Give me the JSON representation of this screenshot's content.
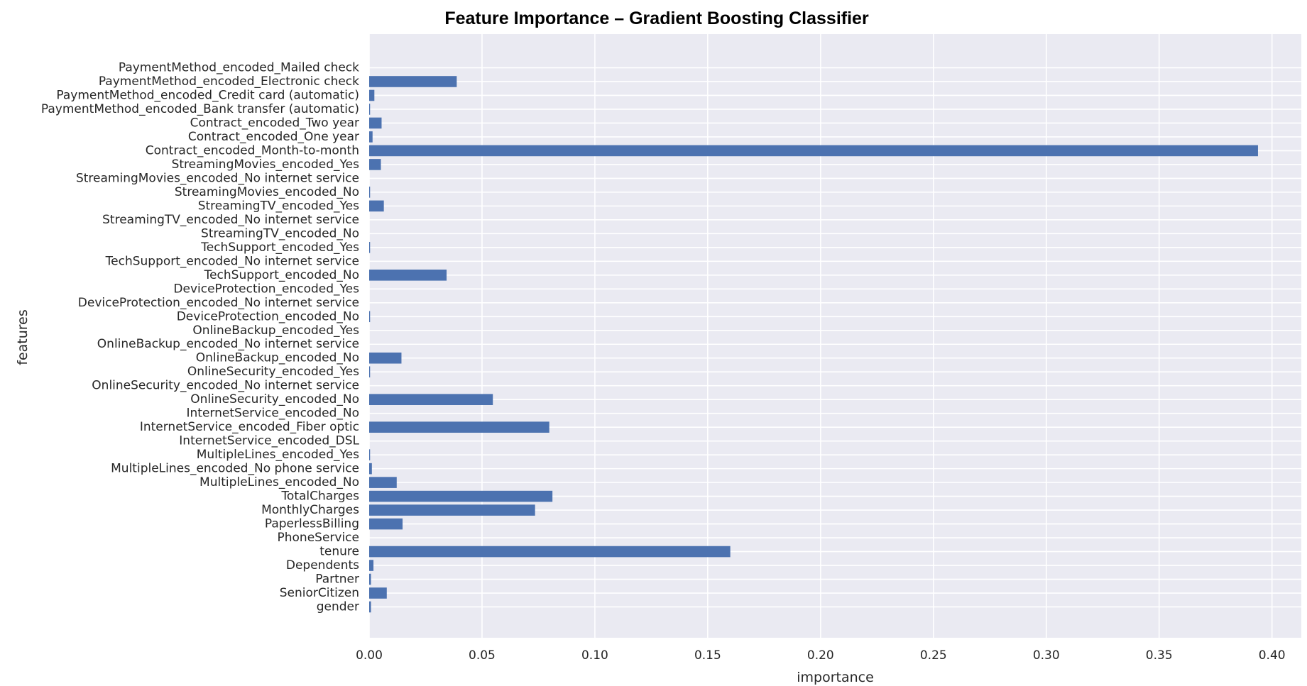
{
  "chart_data": {
    "type": "bar",
    "orientation": "horizontal",
    "title": "Feature Importance – Gradient Boosting Classifier",
    "xlabel": "importance",
    "ylabel": "features",
    "xlim": [
      0,
      0.413
    ],
    "xticks": [
      0.0,
      0.05,
      0.1,
      0.15,
      0.2,
      0.25,
      0.3,
      0.35,
      0.4
    ],
    "xtick_labels": [
      "0.00",
      "0.05",
      "0.10",
      "0.15",
      "0.20",
      "0.25",
      "0.30",
      "0.35",
      "0.40"
    ],
    "grid": true,
    "style": "seaborn-darkgrid",
    "bar_color": "#4C72B0",
    "background_color": "#EAEAF2",
    "categories": [
      "gender",
      "SeniorCitizen",
      "Partner",
      "Dependents",
      "tenure",
      "PhoneService",
      "PaperlessBilling",
      "MonthlyCharges",
      "TotalCharges",
      "MultipleLines_encoded_No",
      "MultipleLines_encoded_No phone service",
      "MultipleLines_encoded_Yes",
      "InternetService_encoded_DSL",
      "InternetService_encoded_Fiber optic",
      "InternetService_encoded_No",
      "OnlineSecurity_encoded_No",
      "OnlineSecurity_encoded_No internet service",
      "OnlineSecurity_encoded_Yes",
      "OnlineBackup_encoded_No",
      "OnlineBackup_encoded_No internet service",
      "OnlineBackup_encoded_Yes",
      "DeviceProtection_encoded_No",
      "DeviceProtection_encoded_No internet service",
      "DeviceProtection_encoded_Yes",
      "TechSupport_encoded_No",
      "TechSupport_encoded_No internet service",
      "TechSupport_encoded_Yes",
      "StreamingTV_encoded_No",
      "StreamingTV_encoded_No internet service",
      "StreamingTV_encoded_Yes",
      "StreamingMovies_encoded_No",
      "StreamingMovies_encoded_No internet service",
      "StreamingMovies_encoded_Yes",
      "Contract_encoded_Month-to-month",
      "Contract_encoded_One year",
      "Contract_encoded_Two year",
      "PaymentMethod_encoded_Bank transfer (automatic)",
      "PaymentMethod_encoded_Credit card (automatic)",
      "PaymentMethod_encoded_Electronic check",
      "PaymentMethod_encoded_Mailed check"
    ],
    "values": [
      0.0008,
      0.0078,
      0.0008,
      0.0019,
      0.16,
      0.0,
      0.0148,
      0.0735,
      0.0812,
      0.0122,
      0.0012,
      0.0004,
      0.0,
      0.0798,
      0.0,
      0.0548,
      0.0,
      0.0004,
      0.0143,
      0.0,
      0.0,
      0.0004,
      0.0,
      0.0,
      0.0343,
      0.0,
      0.0004,
      0.0,
      0.0,
      0.0065,
      0.0004,
      0.0,
      0.0052,
      0.3938,
      0.0015,
      0.0055,
      0.0004,
      0.0023,
      0.0388,
      0.0
    ]
  }
}
